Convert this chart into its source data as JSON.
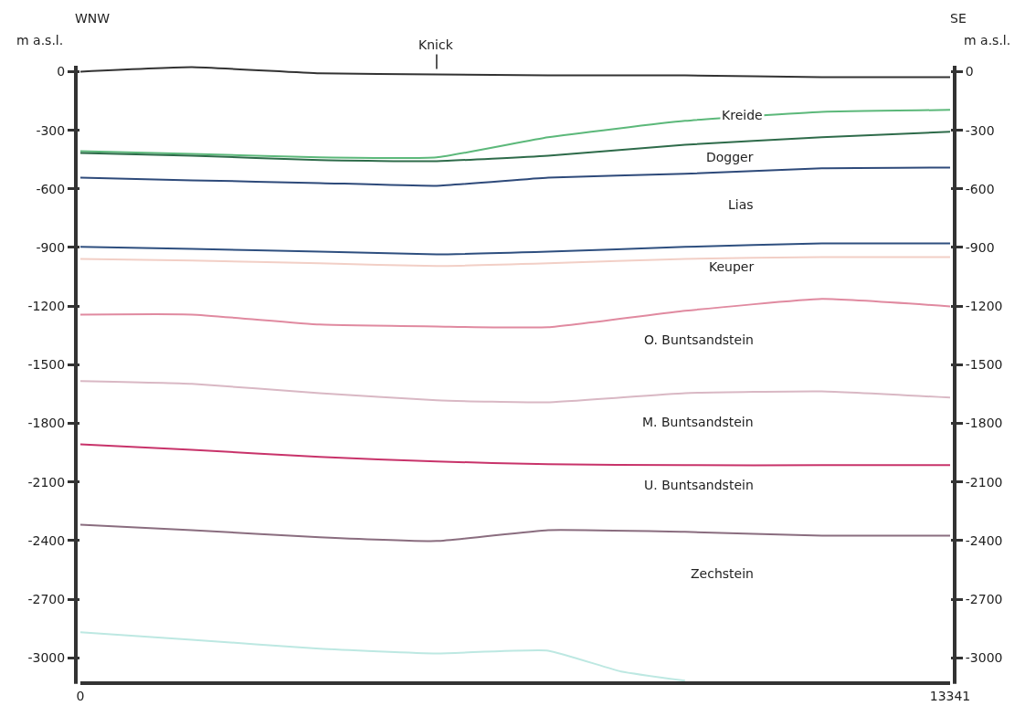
{
  "chart_data": {
    "type": "line",
    "ylabel": "m a.s.l.",
    "y2label": "m a.s.l.",
    "x": [
      0,
      1710,
      3670,
      5465,
      7175,
      9275,
      11375,
      13341
    ],
    "series": [
      {
        "color": "#333333",
        "values": [
          0,
          23,
          -9,
          -14,
          -19,
          -19,
          -28,
          -28
        ]
      },
      {
        "color": "#5cb87a",
        "values": [
          -407,
          -421,
          -439,
          -439,
          -336,
          -252,
          -206,
          -196
        ]
      },
      {
        "color": "#2e6b4a",
        "values": [
          -416,
          -430,
          -453,
          -458,
          -430,
          -374,
          -336,
          -308
        ]
      },
      {
        "color": "#2e4a7a",
        "values": [
          -542,
          -556,
          -570,
          -584,
          -542,
          -523,
          -495,
          -491
        ]
      },
      {
        "color": "#2e4f7f",
        "values": [
          -897,
          -907,
          -921,
          -935,
          -921,
          -897,
          -879,
          -879
        ]
      },
      {
        "color": "#f2cfc6",
        "values": [
          -958,
          -967,
          -981,
          -995,
          -981,
          -958,
          -949,
          -949
        ]
      },
      {
        "color": "#e08aa0",
        "values": [
          -1243,
          -1243,
          -1294,
          -1304,
          -1308,
          -1224,
          -1163,
          -1201
        ]
      },
      {
        "color": "#d9b8c4",
        "values": [
          -1584,
          -1598,
          -1645,
          -1682,
          -1692,
          -1645,
          -1636,
          -1668
        ]
      },
      {
        "color": "#c8336a",
        "values": [
          -1907,
          -1935,
          -1972,
          -1995,
          -2009,
          -2014,
          -2014,
          -2014
        ]
      },
      {
        "color": "#8a6d7f",
        "values": [
          -2318,
          -2346,
          -2383,
          -2402,
          -2346,
          -2355,
          -2374,
          -2374
        ]
      },
      {
        "color": "#bde8e2",
        "x": [
          0,
          1710,
          3670,
          5465,
          7175,
          8294,
          9275
        ],
        "values": [
          -2869,
          -2907,
          -2953,
          -2977,
          -2963,
          -3070,
          -3117
        ]
      }
    ],
    "xlim": [
      0,
      13341
    ],
    "xticks": [
      0,
      13341
    ],
    "ylim": [
      -3120,
      30
    ],
    "yticks": [
      0,
      -300,
      -600,
      -900,
      -1200,
      -1500,
      -1800,
      -2100,
      -2400,
      -2700,
      -3000
    ],
    "y2lim": [
      -3120,
      30
    ],
    "y2ticks": [
      0,
      -300,
      -600,
      -900,
      -1200,
      -1500,
      -1800,
      -2100,
      -2400,
      -2700,
      -3000
    ],
    "annotations": [
      "WNW",
      "SE",
      {
        "text": "Knick",
        "x": 5465,
        "y": -14
      },
      "Kreide",
      "Dogger",
      "Lias",
      "Keuper",
      "O. Buntsandstein",
      "M. Buntsandstein",
      "U. Buntsandstein",
      "Zechstein"
    ],
    "marker": "none",
    "line_style": "solid"
  }
}
